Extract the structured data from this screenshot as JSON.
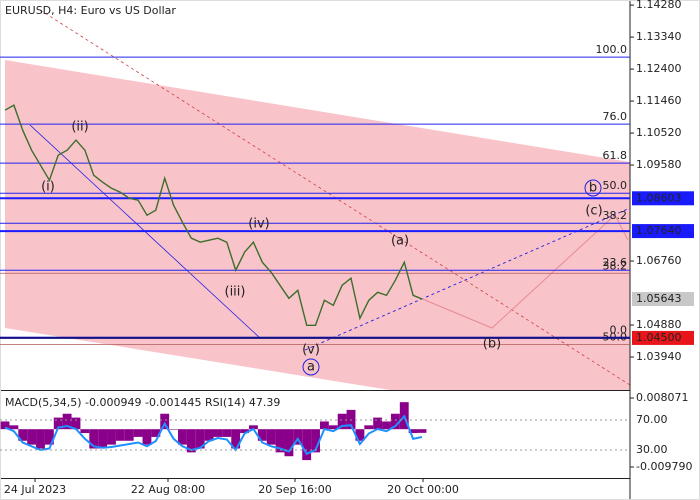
{
  "chart_data": {
    "type": "line",
    "title": "EURUSD, H4:  Euro vs US Dollar",
    "color": "#3c6e2a",
    "ylim": [
      1.0297,
      1.1443
    ],
    "yticks": [
      {
        "value": 1.1428,
        "label": "1.14280"
      },
      {
        "value": 1.1334,
        "label": "1.13340"
      },
      {
        "value": 1.124,
        "label": "1.12400"
      },
      {
        "value": 1.1146,
        "label": "1.11460"
      },
      {
        "value": 1.1052,
        "label": "1.10520"
      },
      {
        "value": 1.0958,
        "label": "1.09580"
      },
      {
        "value": 1.0676,
        "label": "1.06760"
      },
      {
        "value": 1.0488,
        "label": "1.04880"
      },
      {
        "value": 1.0394,
        "label": "1.03940"
      }
    ],
    "values": [
      1.11193,
      1.1134,
      1.10605,
      1.10017,
      1.09576,
      1.09135,
      1.0987,
      1.10017,
      1.10311,
      1.10017,
      1.09282,
      1.09076,
      1.089,
      1.08782,
      1.08606,
      1.08547,
      1.08106,
      1.08253,
      1.09194,
      1.084,
      1.079,
      1.0743,
      1.07312,
      1.07371,
      1.0743,
      1.07312,
      1.06489,
      1.07018,
      1.07312,
      1.06724,
      1.0643,
      1.06048,
      1.05666,
      1.05901,
      1.04872,
      1.04872,
      1.05607,
      1.0546,
      1.06048,
      1.06254,
      1.05078,
      1.05607,
      1.05842,
      1.05754,
      1.06195,
      1.06724,
      1.05754,
      1.05643
    ],
    "time_labels": [
      "24 Jul 2023",
      "22 Aug 08:00",
      "20 Sep 16:00",
      "20 Oct 00:00"
    ],
    "levels": [
      {
        "value": 1.08603,
        "color": "#1a1aff"
      },
      {
        "value": 1.0764,
        "label": "1.07640",
        "color": "#1a1aff"
      },
      {
        "value": 1.05643,
        "color": "#c8c8c8"
      },
      {
        "value": 1.045,
        "label": "1.04500",
        "color": "#e8161b"
      }
    ],
    "fib_levels": [
      {
        "value": 1.12751,
        "label": "100.0"
      },
      {
        "value": 1.10781,
        "label": "76.0"
      },
      {
        "value": 1.09635,
        "label": "61.8"
      },
      {
        "value": 1.08753,
        "label": "50.0"
      },
      {
        "value": 1.0787,
        "label": "38.2"
      },
      {
        "value": 1.0649,
        "label": "23.6"
      },
      {
        "value": 1.0452,
        "label": "0.0"
      }
    ],
    "fib_levels_2": [
      {
        "value": 1.064,
        "label": "38.2"
      },
      {
        "value": 1.0431,
        "label": "50.0"
      }
    ],
    "wave_labels": [
      "(i)",
      "(ii)",
      "(iii)",
      "(iv)",
      "(v)",
      "a",
      "(a)",
      "(b)",
      "(c)",
      "b"
    ],
    "indicator": {
      "title": "MACD(5,34,5) -0.000949 -0.001445 RSI(14) 47.39",
      "macd_lim": [
        -0.01264,
        0.00963
      ],
      "macd_ticks": [
        0.008071,
        {
          "value": -0.00979,
          "label": "-0.009790"
        }
      ],
      "rsi_lim": [
        -7.3,
        107.3
      ],
      "rsi_ticks": [
        {
          "value": 70,
          "label": "70.00"
        },
        {
          "value": 30,
          "label": "30.00"
        }
      ],
      "macd_color": "#8b008b",
      "rsi_color": "#1e90ff",
      "macd": [
        0.002,
        0.001,
        -0.003,
        -0.004,
        -0.005,
        -0.004,
        0.003,
        0.004,
        0.003,
        -0.001,
        -0.005,
        -0.005,
        -0.004,
        -0.003,
        -0.003,
        -0.002,
        -0.004,
        -0.002,
        0.004,
        0,
        -0.004,
        -0.006,
        -0.005,
        -0.003,
        -0.002,
        -0.002,
        -0.005,
        -0.001,
        0.001,
        -0.003,
        -0.004,
        -0.006,
        -0.007,
        -0.004,
        -0.008,
        -0.006,
        0.002,
        0.001,
        0.004,
        0.005,
        -0.003,
        0.001,
        0.003,
        0.002,
        0.004,
        0.007,
        -0.001,
        -0.000949
      ],
      "rsi": [
        60,
        55,
        40,
        35,
        30,
        32,
        60,
        62,
        58,
        45,
        35,
        33,
        34,
        36,
        38,
        40,
        35,
        42,
        65,
        45,
        35,
        30,
        33,
        42,
        46,
        44,
        30,
        52,
        58,
        40,
        35,
        32,
        28,
        45,
        25,
        30,
        58,
        55,
        62,
        63,
        38,
        52,
        58,
        55,
        62,
        75,
        45,
        47.39
      ]
    }
  }
}
